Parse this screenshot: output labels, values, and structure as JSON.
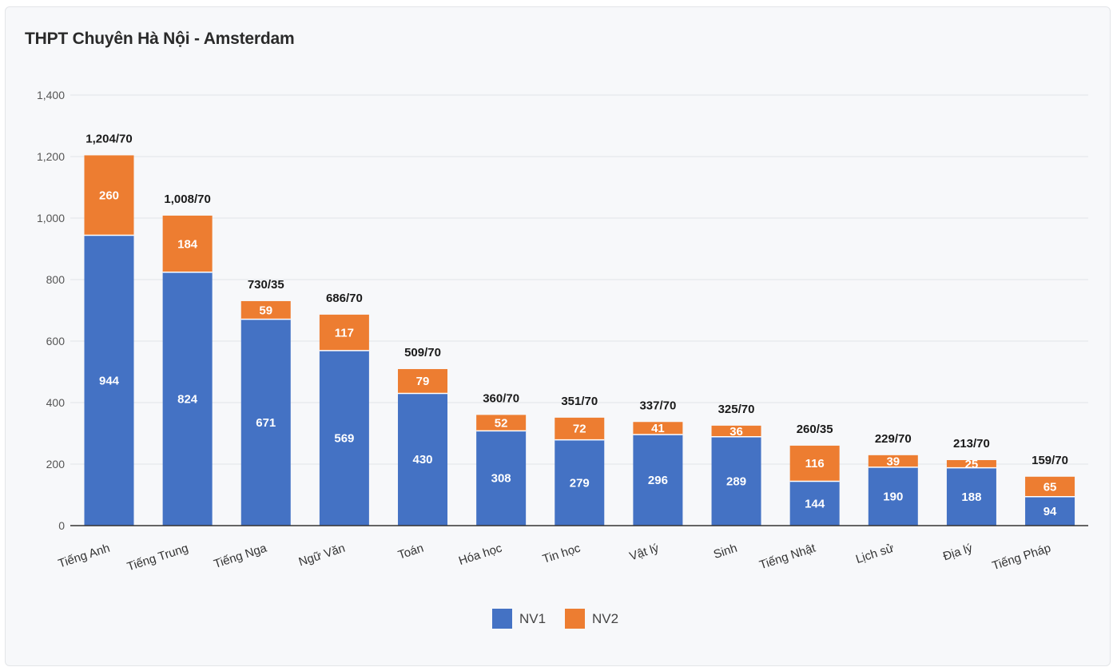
{
  "chart_data": {
    "type": "bar",
    "stacked": true,
    "title": "THPT Chuyên Hà Nội - Amsterdam",
    "categories": [
      "Tiếng Anh",
      "Tiếng Trung",
      "Tiếng Nga",
      "Ngữ Văn",
      "Toán",
      "Hóa học",
      "Tin học",
      "Vật lý",
      "Sinh",
      "Tiếng Nhật",
      "Lịch sử",
      "Địa lý",
      "Tiếng Pháp"
    ],
    "series": [
      {
        "name": "NV1",
        "color": "#4472c4",
        "values": [
          944,
          824,
          671,
          569,
          430,
          308,
          279,
          296,
          289,
          144,
          190,
          188,
          94
        ]
      },
      {
        "name": "NV2",
        "color": "#ed7d31",
        "values": [
          260,
          184,
          59,
          117,
          79,
          52,
          72,
          41,
          36,
          116,
          39,
          25,
          65
        ]
      }
    ],
    "totals": [
      "1,204/70",
      "1,008/70",
      "730/35",
      "686/70",
      "509/70",
      "360/70",
      "351/70",
      "337/70",
      "325/70",
      "260/35",
      "229/70",
      "213/70",
      "159/70"
    ],
    "yticks": [
      "0",
      "200",
      "400",
      "600",
      "800",
      "1,000",
      "1,200",
      "1,400"
    ],
    "ylim": [
      0,
      1400
    ],
    "legend": [
      "NV1",
      "NV2"
    ],
    "legend_position": "bottom",
    "grid": true
  }
}
